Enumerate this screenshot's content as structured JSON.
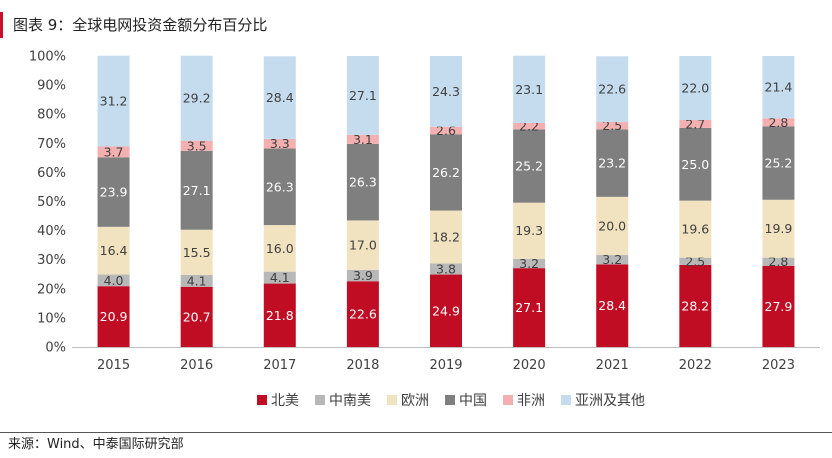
{
  "title": "图表 9：全球电网投资金额分布百分比",
  "source": "来源：Wind、中泰国际研究部",
  "chart_data": {
    "type": "bar",
    "stacked": true,
    "categories": [
      "2015",
      "2016",
      "2017",
      "2018",
      "2019",
      "2020",
      "2021",
      "2022",
      "2023"
    ],
    "y_ticks": [
      "0%",
      "10%",
      "20%",
      "30%",
      "40%",
      "50%",
      "60%",
      "70%",
      "80%",
      "90%",
      "100%"
    ],
    "ylim": [
      0,
      100
    ],
    "legend_position": "bottom",
    "series": [
      {
        "name": "北美",
        "color": "#c00d24",
        "label_color": "#ffffff",
        "values": [
          20.9,
          20.7,
          21.8,
          22.6,
          24.9,
          27.1,
          28.4,
          28.2,
          27.9
        ]
      },
      {
        "name": "中南美",
        "color": "#b8b8b8",
        "label_color": "#404040",
        "values": [
          4.0,
          4.1,
          4.1,
          3.9,
          3.8,
          3.2,
          3.2,
          2.5,
          2.8
        ]
      },
      {
        "name": "欧洲",
        "color": "#f1e2c0",
        "label_color": "#404040",
        "values": [
          16.4,
          15.5,
          16.0,
          17.0,
          18.2,
          19.3,
          20.0,
          19.6,
          19.9
        ]
      },
      {
        "name": "中国",
        "color": "#7f7f7f",
        "label_color": "#ffffff",
        "values": [
          23.9,
          27.1,
          26.3,
          26.3,
          26.2,
          25.2,
          23.2,
          25.0,
          25.2
        ]
      },
      {
        "name": "非洲",
        "color": "#f4b0b0",
        "label_color": "#404040",
        "values": [
          3.7,
          3.5,
          3.3,
          3.1,
          2.6,
          2.2,
          2.5,
          2.7,
          2.8
        ]
      },
      {
        "name": "亚洲及其他",
        "color": "#c5dcef",
        "label_color": "#404040",
        "values": [
          31.2,
          29.2,
          28.4,
          27.1,
          24.3,
          23.1,
          22.6,
          22.0,
          21.4
        ]
      }
    ]
  }
}
